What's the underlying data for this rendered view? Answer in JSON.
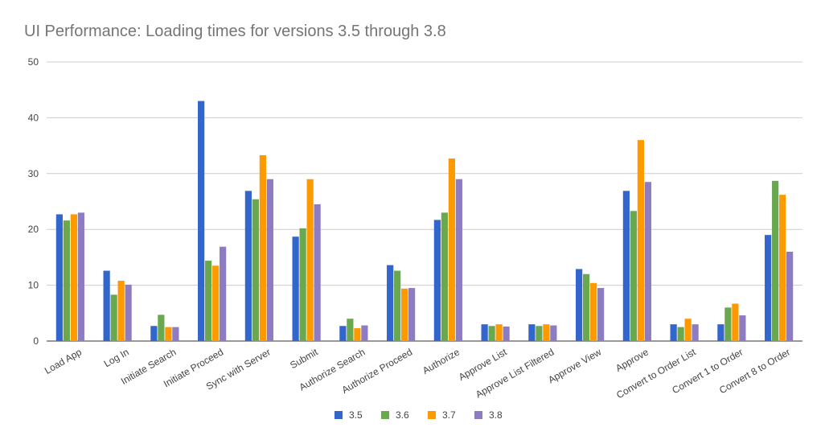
{
  "chart_data": {
    "type": "bar",
    "title": "UI Performance: Loading times for versions 3.5 through 3.8",
    "xlabel": "",
    "ylabel": "",
    "ylim": [
      0,
      50
    ],
    "yticks": [
      0,
      10,
      20,
      30,
      40,
      50
    ],
    "grid": true,
    "legend_position": "bottom",
    "categories": [
      "Load App",
      "Log In",
      "Initiate Search",
      "Initiate Proceed",
      "Sync with Server",
      "Submit",
      "Authorize Search",
      "Authorize Proceed",
      "Authorize",
      "Approve List",
      "Approve List Filtered",
      "Approve View",
      "Approve",
      "Convert to Order List",
      "Convert 1 to Order",
      "Convert 8 to Order"
    ],
    "series": [
      {
        "name": "3.5",
        "color": "#3366cc",
        "values": [
          22.7,
          12.6,
          2.7,
          43.0,
          26.9,
          18.7,
          2.7,
          13.6,
          21.7,
          3.0,
          3.0,
          12.9,
          26.9,
          3.0,
          3.0,
          19.0
        ]
      },
      {
        "name": "3.6",
        "color": "#6aa84f",
        "values": [
          21.6,
          8.3,
          4.7,
          14.4,
          25.4,
          20.2,
          4.0,
          12.6,
          23.0,
          2.7,
          2.7,
          12.0,
          23.3,
          2.5,
          6.0,
          28.7
        ]
      },
      {
        "name": "3.7",
        "color": "#ff9900",
        "values": [
          22.7,
          10.8,
          2.5,
          13.5,
          33.3,
          29.0,
          2.3,
          9.4,
          32.7,
          3.0,
          3.0,
          10.4,
          36.0,
          4.0,
          6.7,
          26.2
        ]
      },
      {
        "name": "3.8",
        "color": "#8e7cc3",
        "values": [
          23.0,
          10.1,
          2.5,
          16.9,
          29.0,
          24.5,
          2.8,
          9.5,
          29.0,
          2.6,
          2.8,
          9.5,
          28.5,
          3.0,
          4.6,
          16.0
        ]
      }
    ]
  }
}
